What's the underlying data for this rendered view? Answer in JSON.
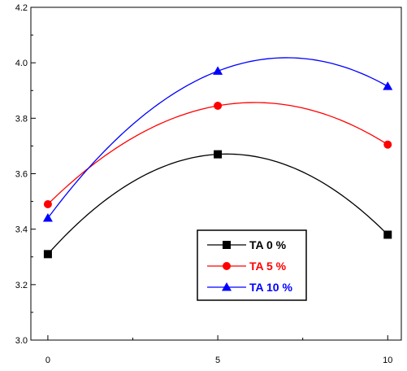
{
  "chart_data": {
    "type": "line",
    "x_ticks": [
      0,
      5,
      10
    ],
    "y_ticks": [
      "3.0",
      "3.2",
      "3.4",
      "3.6",
      "3.8",
      "4.0",
      "4.2"
    ],
    "xlim": [
      -0.5,
      10.4
    ],
    "ylim": [
      3.0,
      4.2
    ],
    "grid": false,
    "legend_position": "bottom-center",
    "series": [
      {
        "name": "TA 0 %",
        "color": "#000000",
        "marker": "square",
        "points": [
          [
            0,
            3.31
          ],
          [
            5,
            3.67
          ],
          [
            10,
            3.38
          ]
        ]
      },
      {
        "name": "TA 5 %",
        "color": "#ff0000",
        "marker": "circle",
        "points": [
          [
            0,
            3.49
          ],
          [
            5,
            3.845
          ],
          [
            10,
            3.705
          ]
        ]
      },
      {
        "name": "TA 10 %",
        "color": "#0000ff",
        "marker": "triangle",
        "points": [
          [
            0,
            3.44
          ],
          [
            5,
            3.97
          ],
          [
            10,
            3.915
          ]
        ]
      }
    ]
  }
}
